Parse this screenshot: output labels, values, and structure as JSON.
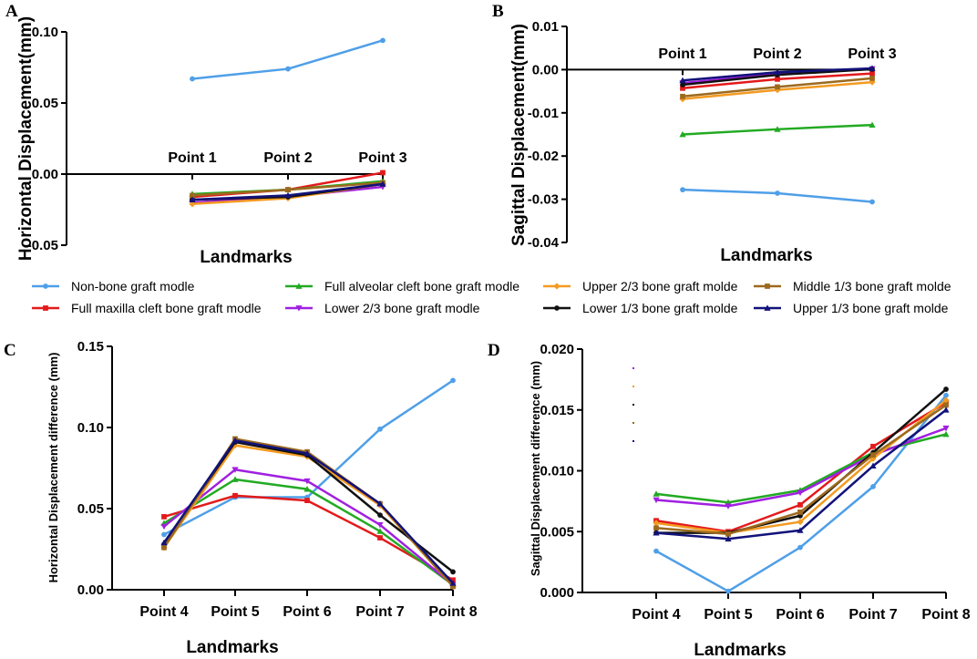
{
  "legend": [
    {
      "name": "Non-bone graft modle",
      "color": "#4f9fe8",
      "marker": "circle"
    },
    {
      "name": "Full maxilla cleft bone graft modle",
      "color": "#e31a1c",
      "marker": "square"
    },
    {
      "name": "Full alveolar cleft bone graft modle",
      "color": "#22aa22",
      "marker": "triangle"
    },
    {
      "name": "Lower 2/3 bone graft modle",
      "color": "#a020e0",
      "marker": "tri-down"
    },
    {
      "name": "Upper 2/3 bone graft molde",
      "color": "#f39a20",
      "marker": "diamond"
    },
    {
      "name": "Lower 1/3 bone graft molde",
      "color": "#111111",
      "marker": "circle"
    },
    {
      "name": "Middle 1/3 bone graft molde",
      "color": "#9c6a1e",
      "marker": "square"
    },
    {
      "name": "Upper 1/3 bone graft molde",
      "color": "#12127a",
      "marker": "triangle"
    }
  ],
  "chart_data": [
    {
      "panel": "A",
      "type": "line",
      "xlabel": "Landmarks",
      "ylabel": "Horizontal Displacement(mm)",
      "categories": [
        "Point 1",
        "Point 2",
        "Point 3"
      ],
      "ylim": [
        -0.05,
        0.1
      ],
      "yticks": [
        -0.05,
        0.0,
        0.05,
        0.1
      ],
      "ytick_labels": [
        "-0.05",
        "0.00",
        "0.05",
        "0.10"
      ],
      "series": [
        {
          "name": "Non-bone graft modle",
          "values": [
            0.067,
            0.074,
            0.094
          ]
        },
        {
          "name": "Full maxilla cleft bone graft modle",
          "values": [
            -0.016,
            -0.011,
            0.001
          ]
        },
        {
          "name": "Full alveolar cleft bone graft modle",
          "values": [
            -0.014,
            -0.011,
            -0.005
          ]
        },
        {
          "name": "Lower 2/3 bone graft modle",
          "values": [
            -0.02,
            -0.016,
            -0.009
          ]
        },
        {
          "name": "Upper 2/3 bone graft molde",
          "values": [
            -0.021,
            -0.017,
            -0.007
          ]
        },
        {
          "name": "Lower 1/3 bone graft molde",
          "values": [
            -0.018,
            -0.016,
            -0.007
          ]
        },
        {
          "name": "Middle 1/3 bone graft molde",
          "values": [
            -0.015,
            -0.011,
            -0.006
          ]
        },
        {
          "name": "Upper 1/3 bone graft molde",
          "values": [
            -0.018,
            -0.015,
            -0.007
          ]
        }
      ]
    },
    {
      "panel": "B",
      "type": "line",
      "xlabel": "Landmarks",
      "ylabel": "Sagittal Displacement(mm)",
      "categories": [
        "Point 1",
        "Point 2",
        "Point 3"
      ],
      "ylim": [
        -0.04,
        0.01
      ],
      "yticks": [
        -0.04,
        -0.03,
        -0.02,
        -0.01,
        0.0,
        0.01
      ],
      "ytick_labels": [
        "-0.04",
        "-0.03",
        "-0.02",
        "-0.01",
        "0.00",
        "0.01"
      ],
      "series": [
        {
          "name": "Non-bone graft modle",
          "values": [
            -0.0278,
            -0.0286,
            -0.0306
          ]
        },
        {
          "name": "Full maxilla cleft bone graft modle",
          "values": [
            -0.0043,
            -0.0022,
            -0.0009
          ]
        },
        {
          "name": "Full alveolar cleft bone graft modle",
          "values": [
            -0.015,
            -0.0138,
            -0.0128
          ]
        },
        {
          "name": "Lower 2/3 bone graft modle",
          "values": [
            -0.0031,
            -0.001,
            0.0002
          ]
        },
        {
          "name": "Upper 2/3 bone graft molde",
          "values": [
            -0.0068,
            -0.0047,
            -0.0029
          ]
        },
        {
          "name": "Lower 1/3 bone graft molde",
          "values": [
            -0.0035,
            -0.0012,
            0.0001
          ]
        },
        {
          "name": "Middle 1/3 bone graft molde",
          "values": [
            -0.0062,
            -0.004,
            -0.002
          ]
        },
        {
          "name": "Upper 1/3 bone graft molde",
          "values": [
            -0.0025,
            -0.0006,
            0.0003
          ]
        }
      ]
    },
    {
      "panel": "C",
      "type": "line",
      "xlabel": "Landmarks",
      "ylabel": "Horizontal Displacement difference (mm)",
      "categories": [
        "Point 4",
        "Point 5",
        "Point 6",
        "Point 7",
        "Point 8"
      ],
      "ylim": [
        0,
        0.15
      ],
      "yticks": [
        0,
        0.05,
        0.1,
        0.15
      ],
      "ytick_labels": [
        "0.00",
        "0.05",
        "0.10",
        "0.15"
      ],
      "series": [
        {
          "name": "Non-bone graft modle",
          "values": [
            0.034,
            0.057,
            0.057,
            0.099,
            0.129
          ]
        },
        {
          "name": "Full maxilla cleft bone graft modle",
          "values": [
            0.045,
            0.058,
            0.055,
            0.032,
            0.006
          ]
        },
        {
          "name": "Full alveolar cleft bone graft modle",
          "values": [
            0.041,
            0.068,
            0.062,
            0.036,
            0.003
          ]
        },
        {
          "name": "Lower 2/3 bone graft modle",
          "values": [
            0.039,
            0.074,
            0.067,
            0.04,
            0.003
          ]
        },
        {
          "name": "Upper 2/3 bone graft molde",
          "values": [
            0.026,
            0.089,
            0.082,
            0.052,
            0.002
          ]
        },
        {
          "name": "Lower 1/3 bone graft molde",
          "values": [
            0.028,
            0.091,
            0.083,
            0.046,
            0.011
          ]
        },
        {
          "name": "Middle 1/3 bone graft molde",
          "values": [
            0.026,
            0.093,
            0.085,
            0.053,
            0.002
          ]
        },
        {
          "name": "Upper 1/3 bone graft molde",
          "values": [
            0.029,
            0.092,
            0.084,
            0.053,
            0.004
          ]
        }
      ]
    },
    {
      "panel": "D",
      "type": "line",
      "xlabel": "Landmarks",
      "ylabel": "Sagittal Displacement difference (mm)",
      "categories": [
        "Point 4",
        "Point 5",
        "Point 6",
        "Point 7",
        "Point 8"
      ],
      "ylim": [
        0,
        0.02
      ],
      "yticks": [
        0,
        0.005,
        0.01,
        0.015,
        0.02
      ],
      "ytick_labels": [
        "0.000",
        "0.005",
        "0.010",
        "0.015",
        "0.020"
      ],
      "series": [
        {
          "name": "Non-bone graft modle",
          "values": [
            0.0034,
            0.0001,
            0.0037,
            0.0087,
            0.0162
          ]
        },
        {
          "name": "Full maxilla cleft bone graft modle",
          "values": [
            0.0059,
            0.005,
            0.0072,
            0.012,
            0.0156
          ]
        },
        {
          "name": "Full alveolar cleft bone graft modle",
          "values": [
            0.0081,
            0.0074,
            0.0084,
            0.0115,
            0.013
          ]
        },
        {
          "name": "Lower 2/3 bone graft modle",
          "values": [
            0.0076,
            0.0071,
            0.0082,
            0.0113,
            0.0135
          ]
        },
        {
          "name": "Upper 2/3 bone graft molde",
          "values": [
            0.0057,
            0.0049,
            0.0058,
            0.011,
            0.0158
          ]
        },
        {
          "name": "Lower 1/3 bone graft molde",
          "values": [
            0.0049,
            0.0049,
            0.0063,
            0.0115,
            0.0167
          ]
        },
        {
          "name": "Middle 1/3 bone graft molde",
          "values": [
            0.0053,
            0.0048,
            0.0066,
            0.0113,
            0.0154
          ]
        },
        {
          "name": "Upper 1/3 bone graft molde",
          "values": [
            0.0049,
            0.0044,
            0.0051,
            0.0104,
            0.015
          ]
        }
      ]
    }
  ]
}
